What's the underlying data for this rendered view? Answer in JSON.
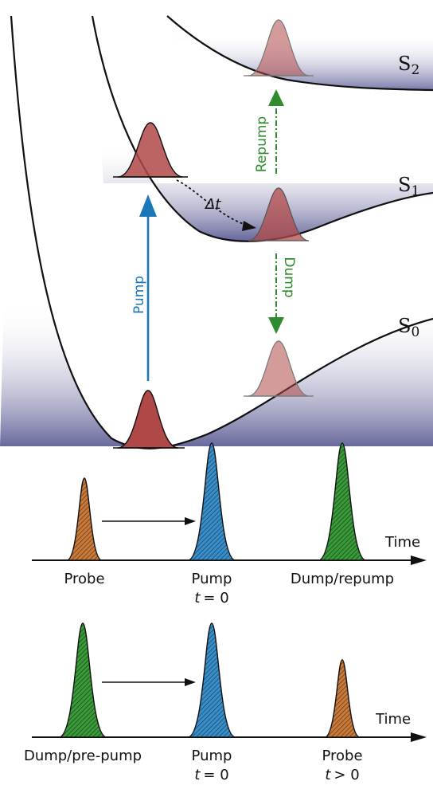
{
  "energy_diagram": {
    "states": [
      {
        "id": "s2",
        "label": "S",
        "sub": "2"
      },
      {
        "id": "s1",
        "label": "S",
        "sub": "1"
      },
      {
        "id": "s0",
        "label": "S",
        "sub": "0"
      }
    ],
    "arrows": {
      "pump": "Pump",
      "repump": "Repump",
      "dump": "Dump",
      "delay_symbol": "Δ",
      "delay_var": "t"
    },
    "colors": {
      "pump": "#1a78b8",
      "dump": "#2e8b2e",
      "wavepacket": "#b04848",
      "well_shade": "#6a6aa0",
      "probe_pulse": "#c87a3a",
      "pump_pulse": "#3a8ec8",
      "dump_pulse": "#3a9a3a"
    }
  },
  "timeline_1": {
    "axis_label": "Time",
    "pulses": [
      {
        "name": "Probe",
        "time": ""
      },
      {
        "name": "Pump",
        "time_var": "t",
        "time_rel": "= 0"
      },
      {
        "name": "Dump/repump",
        "time": ""
      }
    ]
  },
  "timeline_2": {
    "axis_label": "Time",
    "pulses": [
      {
        "name": "Dump/pre-pump",
        "time": ""
      },
      {
        "name": "Pump",
        "time_var": "t",
        "time_rel": "= 0"
      },
      {
        "name": "Probe",
        "time_var": "t",
        "time_rel": "> 0"
      }
    ]
  }
}
